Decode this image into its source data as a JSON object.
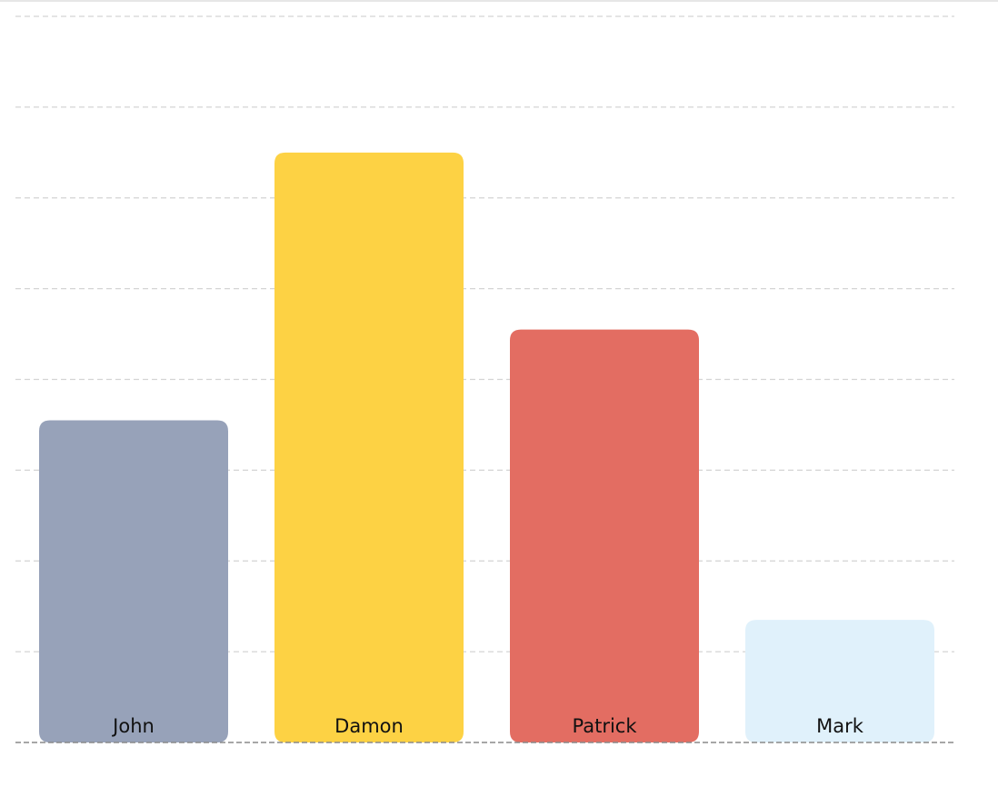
{
  "chart_data": {
    "type": "bar",
    "categories": [
      "John",
      "Damon",
      "Patrick",
      "Mark"
    ],
    "values": [
      3.55,
      6.5,
      4.55,
      1.35
    ],
    "ylim": [
      0,
      8
    ],
    "grid": true,
    "colors": [
      "#97a2b9",
      "#fdd244",
      "#e36d62",
      "#e0f1fb"
    ],
    "gridline_color": "#d4d4d4",
    "baseline_color": "#8a8a8a",
    "title": "",
    "xlabel": "",
    "ylabel": ""
  }
}
